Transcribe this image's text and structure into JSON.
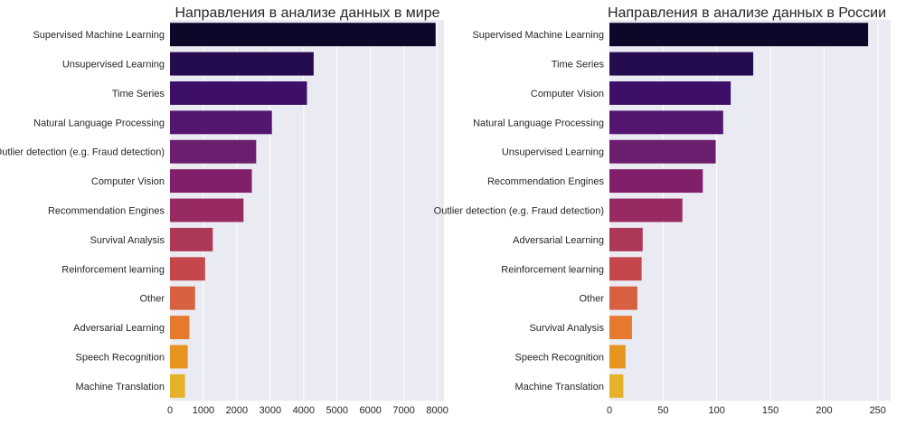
{
  "chart_data": [
    {
      "type": "bar",
      "orientation": "horizontal",
      "title": "Направления в анализе данных в мире",
      "xlabel": "",
      "ylabel": "",
      "xlim": [
        0,
        8200
      ],
      "xticks": [
        0,
        1000,
        2000,
        3000,
        4000,
        5000,
        6000,
        7000,
        8000
      ],
      "grid": true,
      "categories": [
        "Supervised Machine Learning",
        "Unsupervised Learning",
        "Time Series",
        "Natural Language Processing",
        "Outlier detection (e.g. Fraud detection)",
        "Computer Vision",
        "Recommendation Engines",
        "Survival Analysis",
        "Reinforcement learning",
        "Other",
        "Adversarial Learning",
        "Speech Recognition",
        "Machine Translation"
      ],
      "values": [
        7950,
        4300,
        4100,
        3050,
        2580,
        2450,
        2200,
        1280,
        1050,
        750,
        580,
        530,
        450
      ]
    },
    {
      "type": "bar",
      "orientation": "horizontal",
      "title": "Направления в анализе данных в России",
      "xlabel": "",
      "ylabel": "",
      "xlim": [
        0,
        262
      ],
      "xticks": [
        0,
        50,
        100,
        150,
        200,
        250
      ],
      "grid": true,
      "categories": [
        "Supervised Machine Learning",
        "Time Series",
        "Computer Vision",
        "Natural Language Processing",
        "Unsupervised Learning",
        "Recommendation Engines",
        "Outlier detection (e.g. Fraud detection)",
        "Adversarial Learning",
        "Reinforcement learning",
        "Other",
        "Survival Analysis",
        "Speech Recognition",
        "Machine Translation"
      ],
      "values": [
        241,
        134,
        113,
        106,
        99,
        87,
        68,
        31,
        30,
        26,
        21,
        15,
        13
      ]
    }
  ],
  "palette": [
    "#0d0829",
    "#250c4e",
    "#3d0f69",
    "#541570",
    "#6b1d6e",
    "#811f6b",
    "#982a62",
    "#ad3858",
    "#c4484b",
    "#d76040",
    "#e57a2e",
    "#e8951f",
    "#e5b12b"
  ],
  "style": {
    "plot_background": "#eaeaf2",
    "grid_color": "#ffffff",
    "text_color": "#262626"
  }
}
